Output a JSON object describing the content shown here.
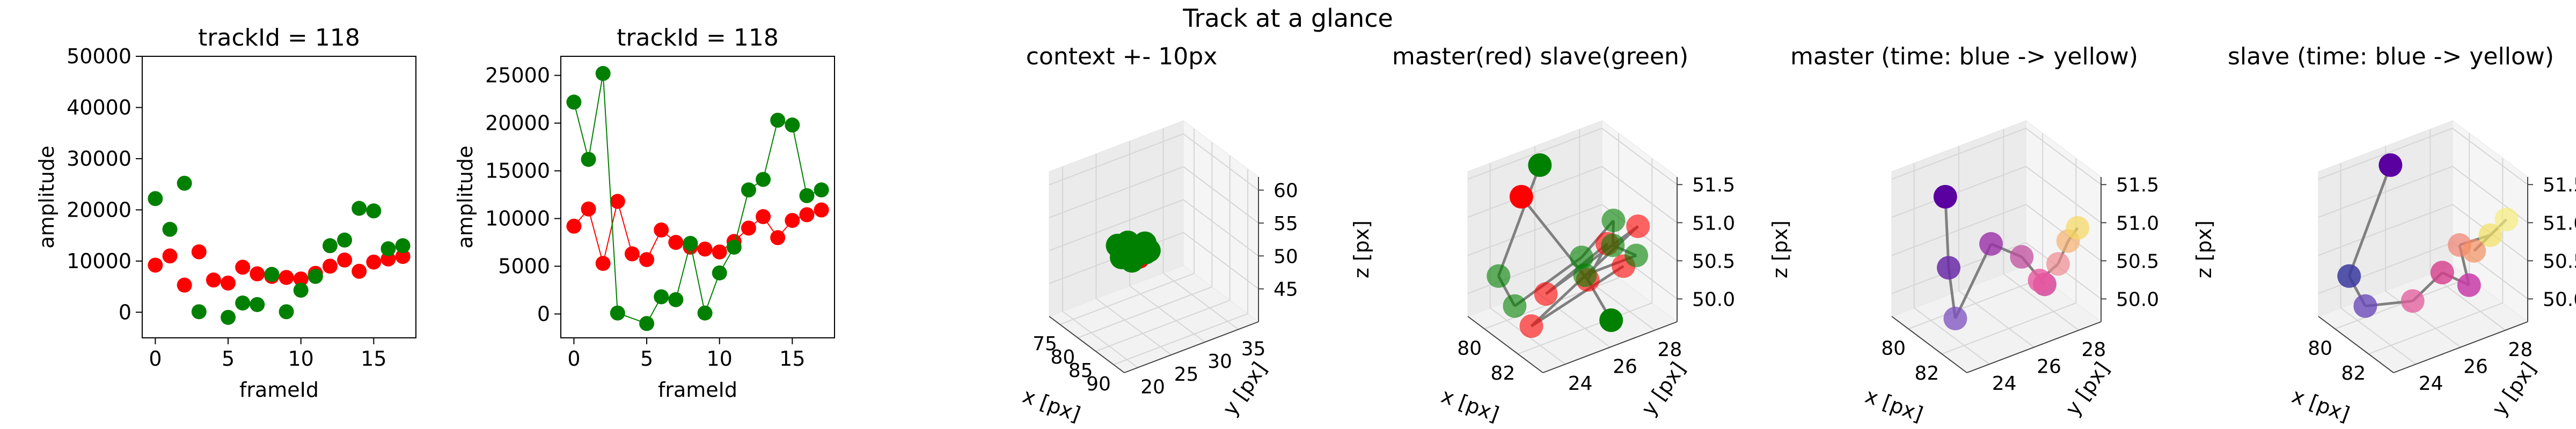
{
  "figure": {
    "suptitle": "Track at a glance"
  },
  "colors": {
    "master": "#ff0000",
    "slave": "#008000",
    "link": "#808080",
    "pane": "#f2f2f2",
    "grid": "#d9d9d9"
  },
  "chart_data": [
    {
      "type": "scatter",
      "title": "trackId = 118",
      "xlabel": "frameId",
      "ylabel": "amplitude",
      "xlim": [
        -0.9,
        17.9
      ],
      "ylim": [
        -5000,
        50000
      ],
      "xticks": [
        0,
        5,
        10,
        15
      ],
      "yticks": [
        0,
        10000,
        20000,
        30000,
        40000,
        50000
      ],
      "series": [
        {
          "color": "#ff0000",
          "line": false,
          "x": [
            0,
            1,
            2,
            3,
            4,
            5,
            6,
            7,
            8,
            9,
            10,
            11,
            12,
            13,
            14,
            15,
            16,
            17
          ],
          "y": [
            9200,
            11000,
            5300,
            11800,
            6300,
            5700,
            8800,
            7500,
            7000,
            6800,
            6500,
            7600,
            9000,
            10200,
            8000,
            9800,
            10400,
            10900
          ]
        },
        {
          "color": "#008000",
          "line": false,
          "x": [
            0,
            1,
            2,
            3,
            5,
            6,
            7,
            8,
            9,
            10,
            11,
            12,
            13,
            14,
            15,
            16,
            17
          ],
          "y": [
            22200,
            16200,
            25200,
            100,
            -1000,
            1800,
            1500,
            7400,
            100,
            4300,
            7000,
            13000,
            14100,
            20300,
            19800,
            12400,
            13000
          ]
        }
      ]
    },
    {
      "type": "scatter",
      "title": "trackId = 118",
      "xlabel": "frameId",
      "ylabel": "amplitude",
      "xlim": [
        -0.9,
        17.9
      ],
      "ylim": [
        -2500,
        27000
      ],
      "xticks": [
        0,
        5,
        10,
        15
      ],
      "yticks": [
        0,
        5000,
        10000,
        15000,
        20000,
        25000
      ],
      "series": [
        {
          "color": "#ff0000",
          "line": true,
          "x": [
            0,
            1,
            2,
            3,
            4,
            5,
            6,
            7,
            8,
            9,
            10,
            11,
            12,
            13,
            14,
            15,
            16,
            17
          ],
          "y": [
            9200,
            11000,
            5300,
            11800,
            6300,
            5700,
            8800,
            7500,
            7000,
            6800,
            6500,
            7600,
            9000,
            10200,
            8000,
            9800,
            10400,
            10900
          ]
        },
        {
          "color": "#008000",
          "line": true,
          "x": [
            0,
            1,
            2,
            3,
            5,
            6,
            7,
            8,
            9,
            10,
            11,
            12,
            13,
            14,
            15,
            16,
            17
          ],
          "y": [
            22200,
            16200,
            25200,
            100,
            -1000,
            1800,
            1500,
            7400,
            100,
            4300,
            7000,
            13000,
            14100,
            20300,
            19800,
            12400,
            13000
          ]
        }
      ]
    },
    {
      "type": "scatter3d",
      "title": "context +- 10px",
      "xlabel": "x [px]",
      "ylabel": "y [px]",
      "zlabel": "z [px]",
      "xlim": [
        72,
        93
      ],
      "ylim": [
        18,
        38
      ],
      "zlim": [
        40,
        62
      ],
      "xticks": [
        75,
        80,
        85,
        90
      ],
      "yticks": [
        20,
        25,
        30,
        35
      ],
      "zticks": [
        45,
        50,
        55,
        60
      ],
      "points": [
        {
          "x": 80,
          "y": 26,
          "z": 50.2,
          "c": "#ff0000"
        },
        {
          "x": 81,
          "y": 27,
          "z": 50.5,
          "c": "#ff0000"
        },
        {
          "x": 82,
          "y": 26,
          "z": 50.0,
          "c": "#ff0000"
        },
        {
          "x": 81.5,
          "y": 25,
          "z": 50.8,
          "c": "#ff0000"
        },
        {
          "x": 78,
          "y": 25,
          "z": 50.5,
          "c": "#008000"
        },
        {
          "x": 79,
          "y": 26,
          "z": 51.0,
          "c": "#008000"
        },
        {
          "x": 80,
          "y": 28,
          "z": 50.5,
          "c": "#008000"
        },
        {
          "x": 83,
          "y": 27,
          "z": 51.0,
          "c": "#008000"
        },
        {
          "x": 82,
          "y": 25,
          "z": 49.8,
          "c": "#008000"
        },
        {
          "x": 84,
          "y": 26,
          "z": 51.5,
          "c": "#008000"
        },
        {
          "x": 81,
          "y": 24,
          "z": 50.3,
          "c": "#008000"
        }
      ]
    },
    {
      "type": "scatter3d",
      "title": "master(red) slave(green)",
      "xlabel": "x [px]",
      "ylabel": "y [px]",
      "zlabel": "z [px]",
      "xlim": [
        79,
        83.5
      ],
      "ylim": [
        23,
        29
      ],
      "zlim": [
        49.7,
        51.6
      ],
      "xticks": [
        80,
        82
      ],
      "yticks": [
        24,
        26,
        28
      ],
      "zticks": [
        50.0,
        50.5,
        51.0,
        51.5
      ],
      "links": true,
      "points": [
        {
          "x": 80.2,
          "y": 24.5,
          "z": 51.3,
          "c": "#ff0000",
          "a": 1
        },
        {
          "x": 81.5,
          "y": 26.5,
          "z": 50.2,
          "c": "#ff0000",
          "a": 0.6
        },
        {
          "x": 82,
          "y": 27,
          "z": 50.7,
          "c": "#ff0000",
          "a": 0.6
        },
        {
          "x": 81,
          "y": 25,
          "z": 50.1,
          "c": "#ff0000",
          "a": 0.6
        },
        {
          "x": 82.5,
          "y": 28,
          "z": 50.9,
          "c": "#ff0000",
          "a": 0.6
        },
        {
          "x": 81.2,
          "y": 24.2,
          "z": 49.8,
          "c": "#ff0000",
          "a": 0.6
        },
        {
          "x": 82.3,
          "y": 27.5,
          "z": 50.4,
          "c": "#ff0000",
          "a": 0.6
        },
        {
          "x": 79.3,
          "y": 26,
          "z": 51.4,
          "c": "#008000",
          "a": 1
        },
        {
          "x": 79.5,
          "y": 24,
          "z": 50.2,
          "c": "#008000",
          "a": 0.6
        },
        {
          "x": 79.8,
          "y": 24.5,
          "z": 49.8,
          "c": "#008000",
          "a": 0.6
        },
        {
          "x": 81.8,
          "y": 26,
          "z": 50.6,
          "c": "#008000",
          "a": 0.6
        },
        {
          "x": 82.1,
          "y": 27.2,
          "z": 51.0,
          "c": "#008000",
          "a": 0.6
        },
        {
          "x": 82.6,
          "y": 26.8,
          "z": 50.8,
          "c": "#008000",
          "a": 0.6
        },
        {
          "x": 82.8,
          "y": 27.7,
          "z": 50.6,
          "c": "#008000",
          "a": 0.6
        },
        {
          "x": 81.6,
          "y": 26.3,
          "z": 50.3,
          "c": "#008000",
          "a": 0.6
        },
        {
          "x": 82.9,
          "y": 26.5,
          "z": 49.9,
          "c": "#008000",
          "a": 1
        }
      ]
    },
    {
      "type": "scatter3d",
      "title": "master (time: blue -> yellow)",
      "xlabel": "x [px]",
      "ylabel": "y [px]",
      "zlabel": "z [px]",
      "xlim": [
        79,
        83.5
      ],
      "ylim": [
        23,
        29
      ],
      "zlim": [
        49.7,
        51.6
      ],
      "xticks": [
        80,
        82
      ],
      "yticks": [
        24,
        26,
        28
      ],
      "zticks": [
        50.0,
        50.5,
        51.0,
        51.5
      ],
      "links": true,
      "points": [
        {
          "x": 80.2,
          "y": 24.5,
          "z": 51.3,
          "c": "#5a00a0",
          "a": 1
        },
        {
          "x": 80.8,
          "y": 24.2,
          "z": 50.5,
          "c": "#6a2ba8",
          "a": 0.85
        },
        {
          "x": 81.2,
          "y": 24.2,
          "z": 49.9,
          "c": "#7b4fc0",
          "a": 0.75
        },
        {
          "x": 81.6,
          "y": 25.5,
          "z": 50.8,
          "c": "#9a2ea8",
          "a": 0.8
        },
        {
          "x": 82.1,
          "y": 26.5,
          "z": 50.6,
          "c": "#c04fa0",
          "a": 0.75
        },
        {
          "x": 82.4,
          "y": 27.3,
          "z": 50.2,
          "c": "#d4489a",
          "a": 0.85
        },
        {
          "x": 82.5,
          "y": 27.0,
          "z": 50.3,
          "c": "#e85aa0",
          "a": 0.8
        },
        {
          "x": 82.8,
          "y": 27.6,
          "z": 50.5,
          "c": "#f08a90",
          "a": 0.7
        },
        {
          "x": 82.6,
          "y": 28.2,
          "z": 50.7,
          "c": "#f7b070",
          "a": 0.7
        },
        {
          "x": 82.9,
          "y": 28.4,
          "z": 50.9,
          "c": "#f5d860",
          "a": 0.7
        }
      ]
    },
    {
      "type": "scatter3d",
      "title": "slave (time: blue -> yellow)",
      "xlabel": "x [px]",
      "ylabel": "y [px]",
      "zlabel": "z [px]",
      "xlim": [
        79,
        83.5
      ],
      "ylim": [
        23,
        29
      ],
      "zlim": [
        49.7,
        51.6
      ],
      "xticks": [
        80,
        82
      ],
      "yticks": [
        24,
        26,
        28
      ],
      "zticks": [
        50.0,
        50.5,
        51.0,
        51.5
      ],
      "links": true,
      "points": [
        {
          "x": 79.3,
          "y": 26,
          "z": 51.4,
          "c": "#5a00a0",
          "a": 1
        },
        {
          "x": 79.5,
          "y": 24,
          "z": 50.2,
          "c": "#3a3aa0",
          "a": 0.85
        },
        {
          "x": 79.8,
          "y": 24.5,
          "z": 49.8,
          "c": "#6a4ab8",
          "a": 0.8
        },
        {
          "x": 81.7,
          "y": 25.2,
          "z": 50.1,
          "c": "#e05a9a",
          "a": 0.75
        },
        {
          "x": 82.0,
          "y": 26.3,
          "z": 50.4,
          "c": "#d43c8c",
          "a": 0.8
        },
        {
          "x": 82.4,
          "y": 27.2,
          "z": 50.2,
          "c": "#c83ca8",
          "a": 0.85
        },
        {
          "x": 82.1,
          "y": 27.0,
          "z": 50.7,
          "c": "#f08070",
          "a": 0.7
        },
        {
          "x": 82.6,
          "y": 28.0,
          "z": 50.8,
          "c": "#f2e060",
          "a": 0.7
        },
        {
          "x": 82.3,
          "y": 27.5,
          "z": 50.6,
          "c": "#f59060",
          "a": 0.7
        },
        {
          "x": 82.9,
          "y": 28.5,
          "z": 51.0,
          "c": "#f7ec7a",
          "a": 0.7
        }
      ]
    }
  ]
}
